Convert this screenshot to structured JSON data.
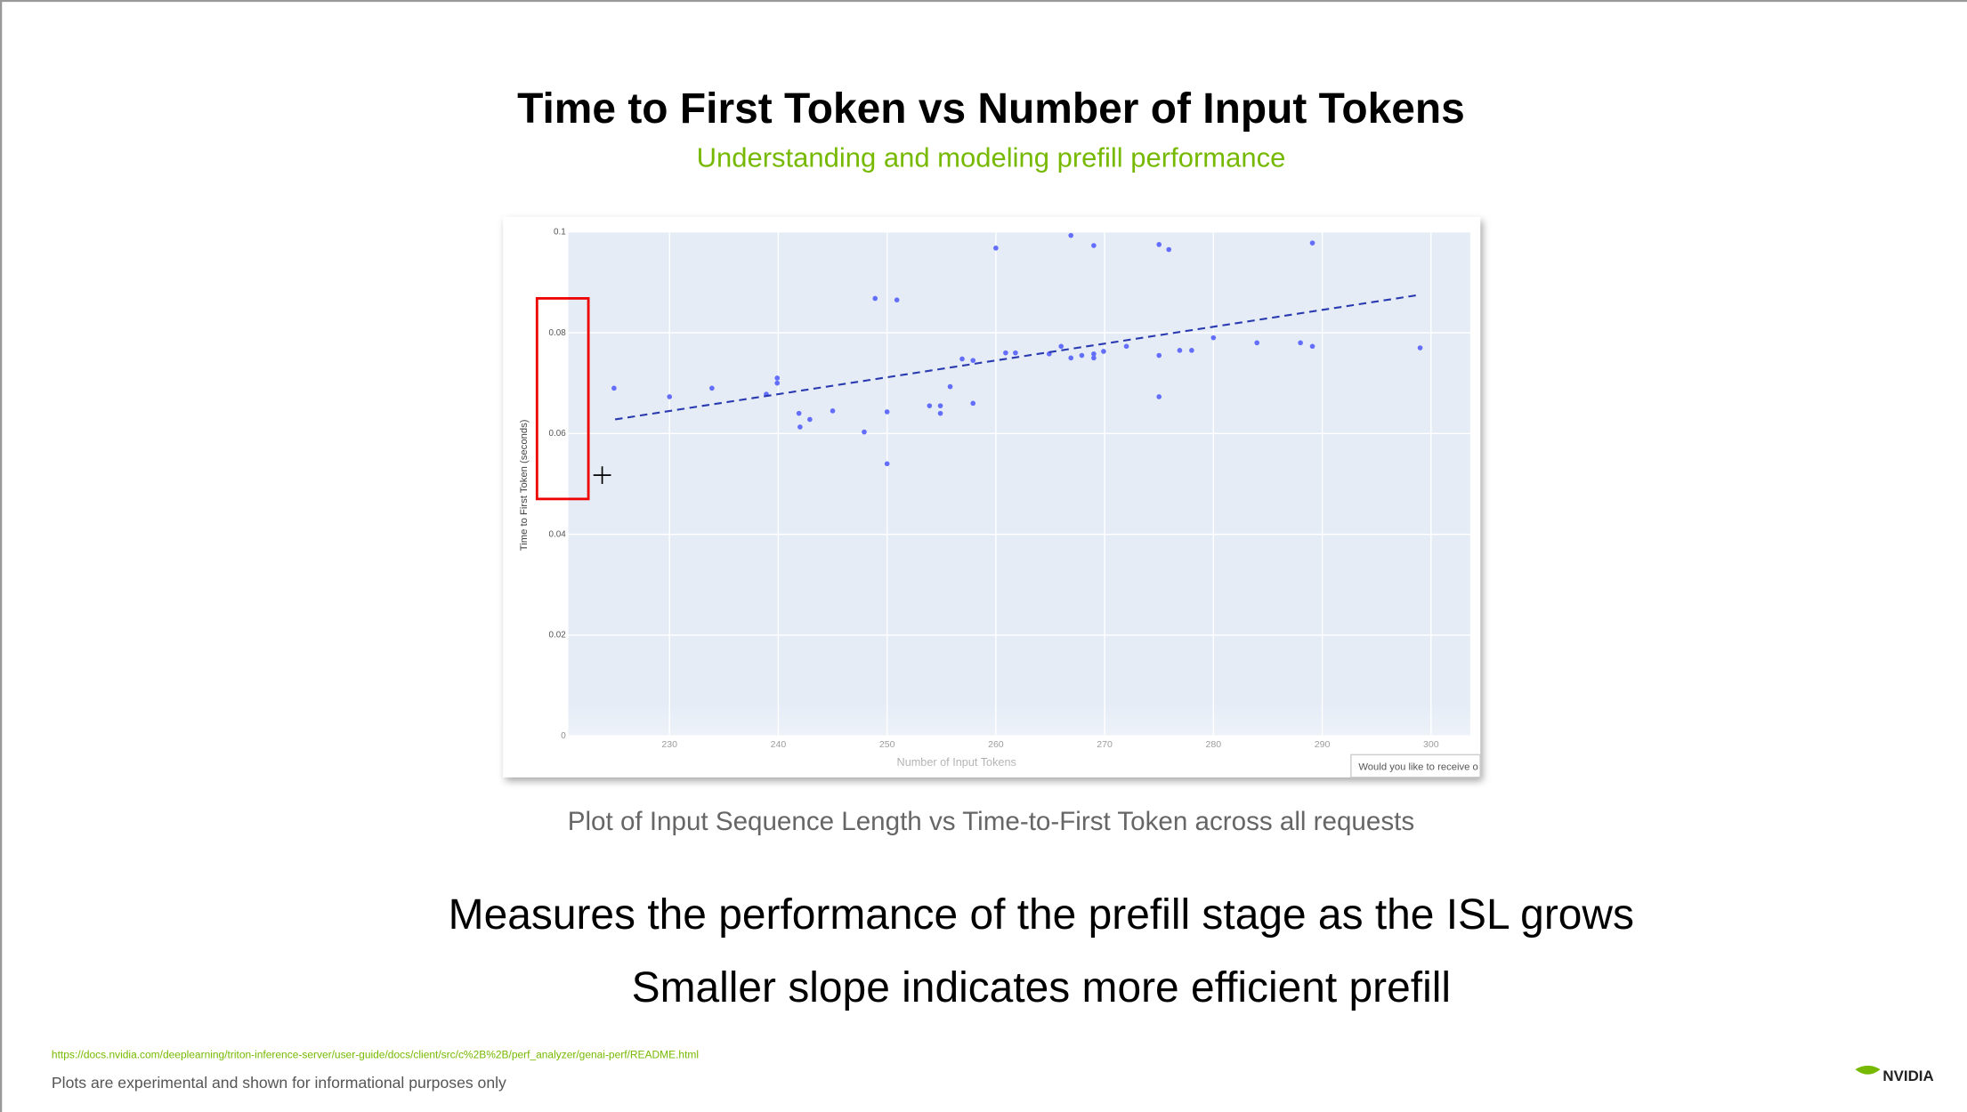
{
  "slide": {
    "title": "Time to First Token vs Number of Input Tokens",
    "subtitle": "Understanding and modeling prefill performance",
    "caption": "Plot of Input Sequence Length vs Time-to-First Token across all requests",
    "bullets": [
      "Measures the performance of the prefill stage as the ISL grows",
      "Smaller slope indicates more efficient prefill"
    ],
    "link": "https://docs.nvidia.com/deeplearning/triton-inference-server/user-guide/docs/client/src/c%2B%2B/perf_analyzer/genai-perf/README.html",
    "disclaimer": "Plots are experimental and shown for informational purposes only",
    "logo": "NVIDIA",
    "popup": "Would you like to receive o"
  },
  "chart_data": {
    "type": "scatter",
    "x_label": "Number of Input Tokens",
    "y_label": "Time to First Token (seconds)",
    "x": [
      224.9,
      230,
      233.9,
      238.9,
      239.9,
      239.9,
      241.9,
      242,
      242.9,
      245,
      247.9,
      248.9,
      250,
      250,
      250.9,
      253.9,
      254.9,
      254.9,
      255.8,
      256.9,
      257.9,
      257.9,
      260,
      260.9,
      261.8,
      264.9,
      266,
      266.9,
      266.9,
      267.9,
      269,
      269,
      269,
      269.9,
      272,
      275,
      275,
      275,
      275.9,
      276.9,
      278,
      280,
      284,
      288,
      289.1,
      289.1,
      299
    ],
    "series": [
      {
        "color": "#636efa",
        "values": [
          0.069,
          0.0673,
          0.069,
          0.0678,
          0.071,
          0.07,
          0.064,
          0.0613,
          0.0628,
          0.0645,
          0.0603,
          0.0868,
          0.0643,
          0.054,
          0.0865,
          0.0655,
          0.0655,
          0.064,
          0.0693,
          0.0748,
          0.0745,
          0.066,
          0.0968,
          0.076,
          0.076,
          0.0758,
          0.0773,
          0.0993,
          0.075,
          0.0755,
          0.0973,
          0.0758,
          0.075,
          0.0763,
          0.0773,
          0.0975,
          0.0755,
          0.0673,
          0.0965,
          0.0765,
          0.0765,
          0.079,
          0.078,
          0.078,
          0.0978,
          0.0773,
          0.077
        ]
      }
    ],
    "trendline": {
      "x": [
        225,
        298.9
      ],
      "values": [
        0.0628,
        0.0875
      ],
      "color": "#2a3ab0",
      "dashed": true
    },
    "xlim": [
      220.7,
      303.6
    ],
    "ylim": [
      0,
      0.1
    ],
    "xticks": [
      230,
      240,
      250,
      260,
      270,
      280,
      290,
      300
    ],
    "yticks": [
      0,
      0.02,
      0.04,
      0.06,
      0.08,
      0.1
    ],
    "grid": true,
    "background": "#e5ecf6"
  }
}
